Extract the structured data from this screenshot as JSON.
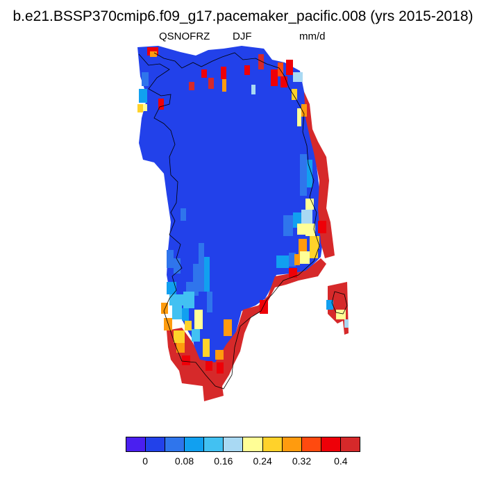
{
  "title": "b.e21.BSSP370cmip6.f09_g17.pacemaker_pacific.008 (yrs 2015-2018)",
  "subtitle": {
    "left": "QSNOFRZ",
    "center": "DJF",
    "right": "mm/d"
  },
  "colorbar": {
    "colors": [
      "#4a1ff0",
      "#2241ea",
      "#2f75ec",
      "#11a0f0",
      "#42c1f2",
      "#a9d9f3",
      "#fffe96",
      "#ffd22a",
      "#ff9b0e",
      "#ff4a0f",
      "#ee0008",
      "#d6292a"
    ],
    "tick_labels": [
      "0",
      "0.08",
      "0.16",
      "0.24",
      "0.32",
      "0.4"
    ]
  },
  "map": {
    "land_fill": "#2241ea",
    "coast_color": "#000000"
  }
}
